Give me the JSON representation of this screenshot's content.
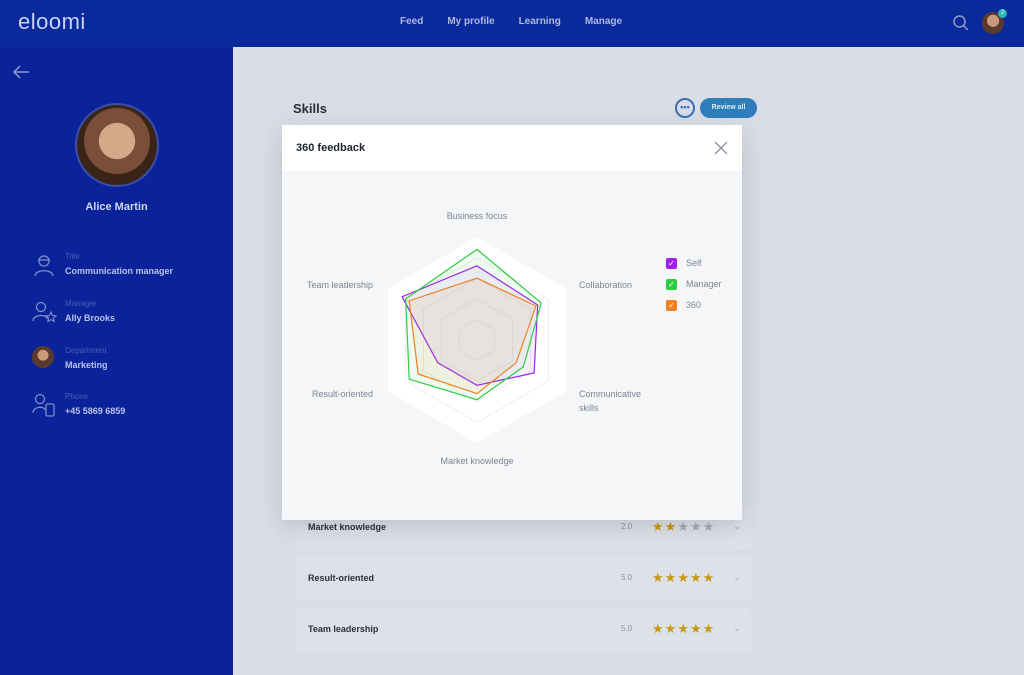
{
  "app": {
    "logo": "eloomi"
  },
  "nav": {
    "items": [
      "Feed",
      "My profile",
      "Learning",
      "Manage"
    ]
  },
  "header": {
    "notification_count": "2"
  },
  "profile": {
    "name": "Alice Martin",
    "fields": [
      {
        "label": "Title",
        "value": "Communication manager"
      },
      {
        "label": "Manager",
        "value": "Ally Brooks"
      },
      {
        "label": "Department",
        "value": "Marketing"
      },
      {
        "label": "Phone",
        "value": "+45 5869 6859"
      }
    ]
  },
  "skills": {
    "title": "Skills",
    "more_label": "•••",
    "review_all_label": "Review all",
    "rows": [
      {
        "name": "Market knowledge",
        "score": "2.0",
        "stars": 2
      },
      {
        "name": "Result-oriented",
        "score": "5.0",
        "stars": 5
      },
      {
        "name": "Team leadership",
        "score": "5.0",
        "stars": 5
      }
    ]
  },
  "modal": {
    "title": "360 feedback",
    "legend": [
      {
        "label": "Self",
        "color": "#a020f0"
      },
      {
        "label": "Manager",
        "color": "#2ecc40"
      },
      {
        "label": "360",
        "color": "#f08020"
      }
    ]
  },
  "chart_data": {
    "type": "radar",
    "axes": [
      "Business focus",
      "Collaboration",
      "Communicative skills",
      "Market knowledge",
      "Result-oriented",
      "Team leadership"
    ],
    "max": 5,
    "series": [
      {
        "name": "Self",
        "color": "#a020f0",
        "values": [
          3.6,
          3.4,
          3.2,
          2.2,
          2.2,
          4.2
        ]
      },
      {
        "name": "Manager",
        "color": "#2ecc40",
        "values": [
          4.4,
          3.6,
          2.6,
          2.9,
          3.8,
          4.0
        ]
      },
      {
        "name": "360",
        "color": "#f08020",
        "values": [
          3.0,
          3.3,
          2.2,
          2.6,
          3.3,
          3.8
        ]
      }
    ]
  },
  "colors": {
    "brand": "#0a239a",
    "topbar": "#0a2a9c",
    "accent": "#2f7ebb",
    "star": "#c89a12"
  }
}
